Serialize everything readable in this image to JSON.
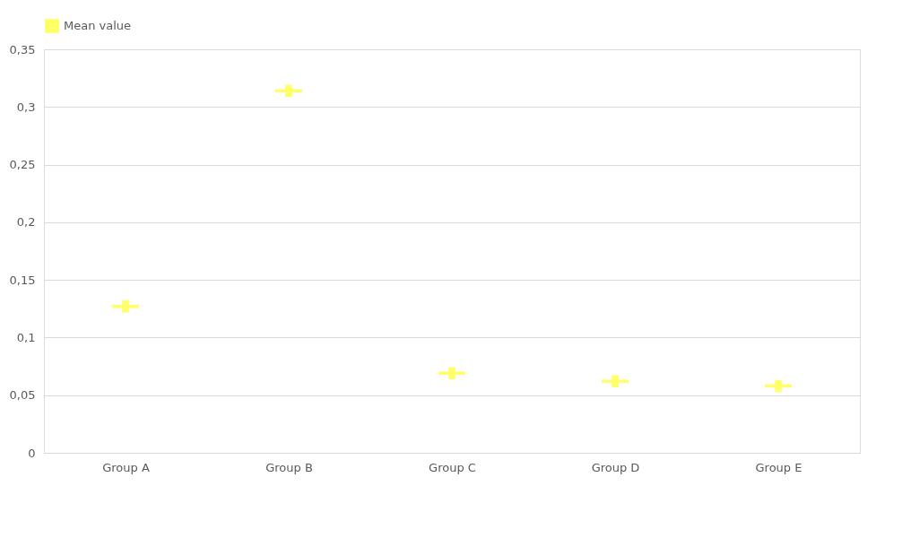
{
  "chart_data": {
    "type": "scatter",
    "categories": [
      "Group A",
      "Group B",
      "Group C",
      "Group D",
      "Group E"
    ],
    "series": [
      {
        "name": "Mean value",
        "color": "#ffff66",
        "values": [
          0.127,
          0.314,
          0.069,
          0.062,
          0.058
        ]
      }
    ],
    "ylim": [
      0,
      0.35
    ],
    "yticks": [
      0,
      {
        "value": 0.05,
        "label": "0,05"
      },
      {
        "value": 0.1,
        "label": "0,1"
      },
      {
        "value": 0.15,
        "label": "0,15"
      },
      {
        "value": 0.2,
        "label": "0,2"
      },
      {
        "value": 0.25,
        "label": "0,25"
      },
      {
        "value": 0.3,
        "label": "0,3"
      },
      {
        "value": 0.35,
        "label": "0,35"
      }
    ],
    "grid": "y",
    "legend": "top",
    "marker": "cross"
  }
}
